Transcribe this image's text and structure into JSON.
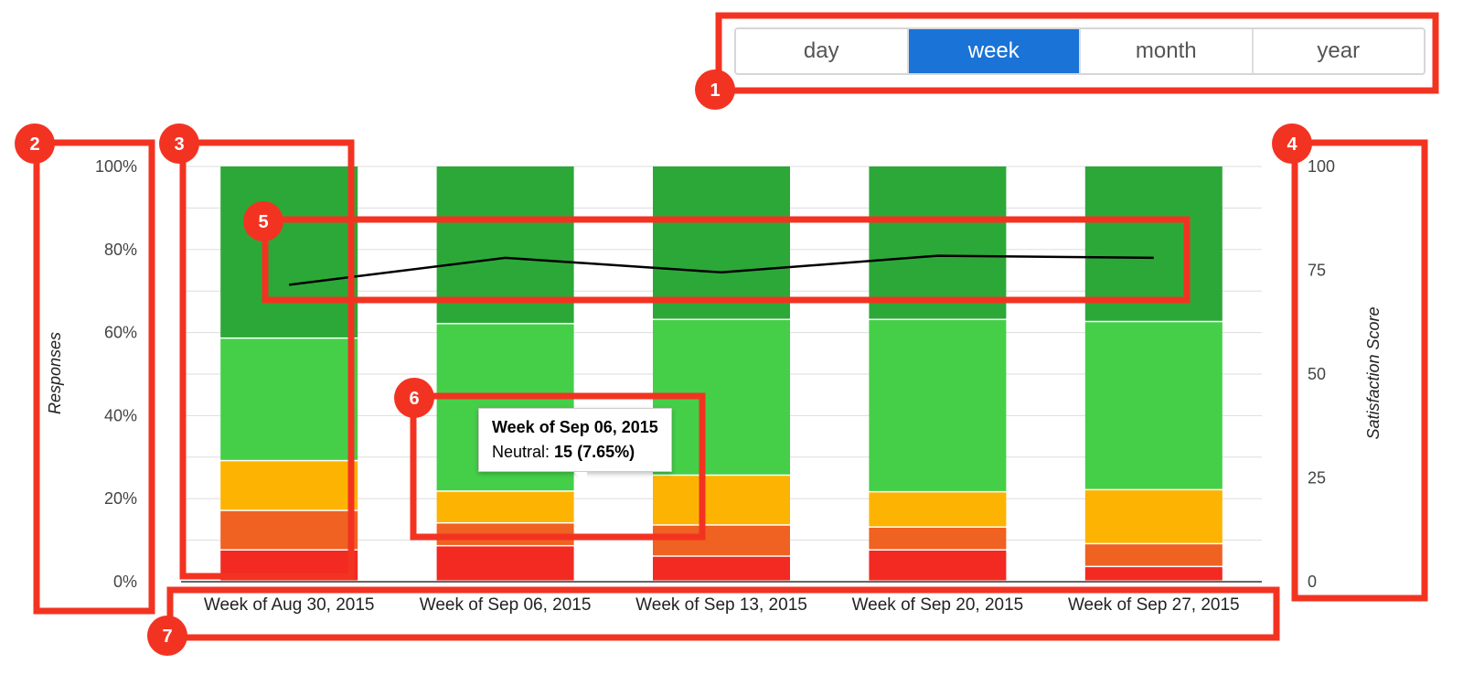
{
  "range_toggle": {
    "options": [
      "day",
      "week",
      "month",
      "year"
    ],
    "selected": "week"
  },
  "chart_data": {
    "type": "bar",
    "stacked": true,
    "categories": [
      "Week of Aug 30, 2015",
      "Week of Sep 06, 2015",
      "Week of Sep 13, 2015",
      "Week of Sep 20, 2015",
      "Week of Sep 27, 2015"
    ],
    "series": [
      {
        "values": [
          7.5,
          8.5,
          6.0,
          7.5,
          3.5
        ],
        "color": "#f22a22"
      },
      {
        "values": [
          9.5,
          5.5,
          7.5,
          5.5,
          5.5
        ],
        "color": "#ef6222"
      },
      {
        "values": [
          12.0,
          7.65,
          12.0,
          8.5,
          13.0
        ],
        "color": "#fdb302"
      },
      {
        "values": [
          29.5,
          40.35,
          37.5,
          41.5,
          40.5
        ],
        "color": "#45cf48"
      },
      {
        "values": [
          41.5,
          38.0,
          37.0,
          37.0,
          37.5
        ],
        "color": "#2ca838"
      }
    ],
    "line": {
      "values": [
        71.5,
        78.0,
        74.5,
        78.5,
        78.0
      ],
      "color": "#000000",
      "axis": "right"
    },
    "left_axis": {
      "label": "Responses",
      "ticks": [
        "0%",
        "20%",
        "40%",
        "60%",
        "80%",
        "100%"
      ],
      "range": [
        0,
        100
      ]
    },
    "right_axis": {
      "label": "Satisfaction Score",
      "ticks": [
        "0",
        "25",
        "50",
        "75",
        "100"
      ],
      "range": [
        0,
        100
      ]
    },
    "grid": true,
    "tooltip": {
      "title": "Week of Sep 06, 2015",
      "series": "Neutral",
      "label": "Neutral:",
      "value": "15 (7.65%)"
    }
  },
  "annotations": {
    "markers": [
      "1",
      "2",
      "3",
      "4",
      "5",
      "6",
      "7"
    ],
    "color": "#f33322"
  }
}
